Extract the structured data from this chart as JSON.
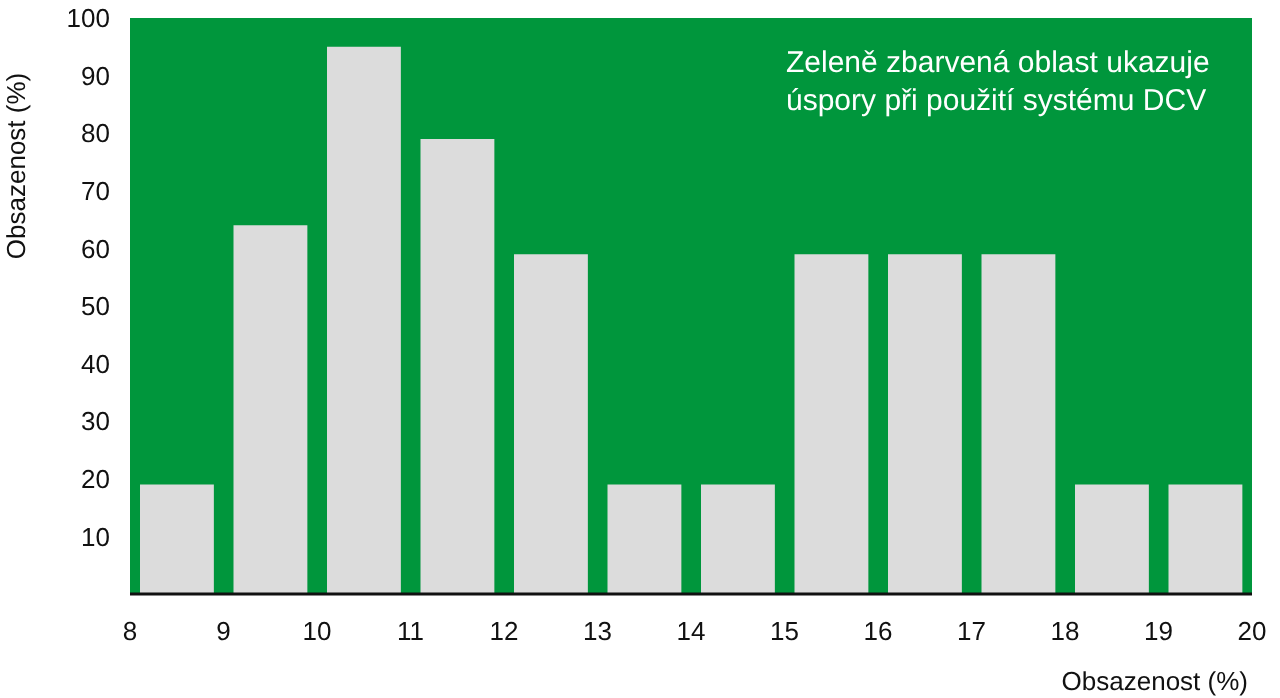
{
  "chart_data": {
    "type": "histogram",
    "xlabel": "Obsazenost (%)",
    "ylabel": "Obsazenost (%)",
    "annotations": [
      "Zeleně zbarvená oblast ukazuje úspory při použití systému DCV"
    ],
    "bins": [
      8,
      9,
      10,
      11,
      12,
      13,
      14,
      15,
      16,
      17,
      18,
      19,
      20
    ],
    "values": [
      19,
      64,
      95,
      79,
      59,
      19,
      19,
      59,
      59,
      59,
      19,
      19
    ],
    "color": "#dcdcdc",
    "xlim": [
      8,
      20
    ],
    "xticks": [
      8,
      9,
      10,
      11,
      12,
      13,
      14,
      15,
      16,
      17,
      18,
      19,
      20
    ],
    "ylim": [
      0,
      100
    ],
    "yticks": [
      10,
      20,
      30,
      40,
      50,
      60,
      70,
      80,
      90,
      100
    ]
  }
}
